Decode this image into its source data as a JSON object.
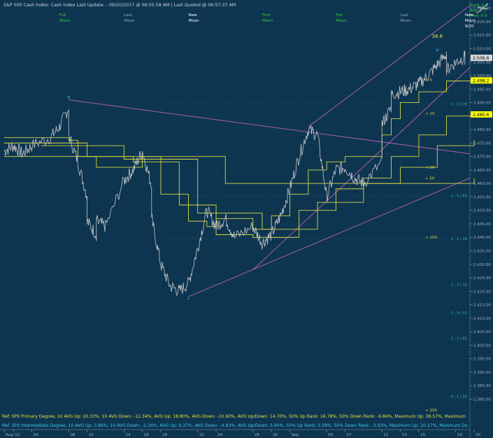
{
  "header": {
    "title": "S&P 500 Cash Index:  Cash Index  Last Update: - 09/20/2017 @ 06:55:58 AM | Last Quoted @ 06:57:37 AM",
    "stats": [
      "Sprd: 2.4",
      "Avg: 2.1",
      "Prev: 0.9"
    ]
  },
  "moon_markers": [
    {
      "line1": "Full",
      "line2": "Moon",
      "color": "#35d035",
      "x": "2017-08-07"
    },
    {
      "line1": "Last",
      "line2": "Moon",
      "color": "#9aa8b0",
      "x": "2017-08-14"
    },
    {
      "line1": "New",
      "line2": "Moon",
      "color": "#ffffff",
      "x": "2017-08-21"
    },
    {
      "line1": "First",
      "line2": "Moon",
      "color": "#35d035",
      "x": "2017-08-29"
    },
    {
      "line1": "Full",
      "line2": "Moon",
      "color": "#35d035",
      "x": "2017-09-06"
    },
    {
      "line1": "Last",
      "line2": "Moon",
      "color": "#9aa8b0",
      "x": "2017-09-13"
    },
    {
      "line1": "New",
      "line2": "Moon",
      "color": "#ffffff",
      "x": "2017-09-20",
      "line3": "9/20"
    }
  ],
  "footer": {
    "primary": "Ref: SPX Primary Degree, 10 AVG Up: 20.33%, 10 AVG Down: -11.34%, AVG Up: 18.80%, AVG Down: -10.60%, AVG Up/Down: 14.70%, 50%  Up Rank: 16.78%, 50% Down Rank: -9.84%, Maximum Up: 38.57%, Maximum",
    "intermediate": "Ref: SPX Intermediate Degree, 10 AVG Up: 3.86%, 10 AVG Down: -2.34%, AVG Up: 6.37%, AVG Down: -4.83%, AVG Up/Down: 5.60%, 50%  Up Rank: 5.58%, 50% Down Rank: -3.93%, Maximum Up: 20.27%, Maximum Do"
  },
  "chart_data": {
    "type": "line",
    "y_range": [
      2377,
      2527
    ],
    "x_range": [
      "2017-08-01",
      "2017-09-21"
    ],
    "y_ticks": [
      2380,
      2385,
      2390,
      2395,
      2400,
      2405,
      2410,
      2415,
      2420,
      2425,
      2430,
      2435,
      2440,
      2445,
      2450,
      2455,
      2460,
      2465,
      2470,
      2475,
      2480,
      2485,
      2490,
      2495,
      2500,
      2505,
      2510,
      2515,
      2520,
      2525
    ],
    "y_tick_labels": [
      "2,380.00",
      "2,385.00",
      "2,390.00",
      "2,395.00",
      "2,400.00",
      "2,405.00",
      "2,410.00",
      "2,415.00",
      "2,420.00",
      "2,425.00",
      "2,430.00",
      "2,435.00",
      "2,440.00",
      "2,445.00",
      "2,450.00",
      "2,455.00",
      "2,460.00",
      "2,465.00",
      "2,470.00",
      "2,475.00",
      "2,480.00",
      "2,485.00",
      "2,490.00",
      "2,495.00",
      "2,500.00",
      "2,505.00",
      "2,510.00",
      "2,515.00",
      "2,520.00",
      "2,525.00"
    ],
    "x_ticks": [
      {
        "x": "2017-08-01",
        "label": "Aug"
      },
      {
        "x": "2017-08-02",
        "label": "02"
      },
      {
        "x": "2017-08-04",
        "label": "04"
      },
      {
        "x": "2017-08-08",
        "label": "08"
      },
      {
        "x": "2017-08-10",
        "label": "10"
      },
      {
        "x": "2017-08-14",
        "label": "14"
      },
      {
        "x": "2017-08-16",
        "label": "16"
      },
      {
        "x": "2017-08-18",
        "label": "18"
      },
      {
        "x": "2017-08-22",
        "label": "22"
      },
      {
        "x": "2017-08-24",
        "label": "24"
      },
      {
        "x": "2017-08-28",
        "label": "28"
      },
      {
        "x": "2017-08-30",
        "label": "30"
      },
      {
        "x": "2017-09-01",
        "label": "Sep"
      },
      {
        "x": "2017-09-05",
        "label": "05"
      },
      {
        "x": "2017-09-07",
        "label": "07"
      },
      {
        "x": "2017-09-11",
        "label": "11"
      },
      {
        "x": "2017-09-13",
        "label": "13"
      },
      {
        "x": "2017-09-15",
        "label": "15"
      },
      {
        "x": "2017-09-19",
        "label": "19"
      },
      {
        "x": "2017-09-21",
        "label": "20"
      }
    ],
    "price": {
      "name": "S&P 500 Cash Index",
      "color": "#c8c8c8",
      "points": [
        [
          "2017-08-01",
          2472
        ],
        [
          "2017-08-02",
          2474
        ],
        [
          "2017-08-03",
          2471
        ],
        [
          "2017-08-04",
          2474
        ],
        [
          "2017-08-06",
          2477
        ],
        [
          "2017-08-07",
          2481
        ],
        [
          "2017-08-08",
          2488
        ],
        [
          "2017-08-08",
          2478
        ],
        [
          "2017-08-09",
          2468
        ],
        [
          "2017-08-10",
          2455
        ],
        [
          "2017-08-10",
          2446
        ],
        [
          "2017-08-11",
          2441
        ],
        [
          "2017-08-11",
          2446
        ],
        [
          "2017-08-12",
          2444
        ],
        [
          "2017-08-14",
          2461
        ],
        [
          "2017-08-15",
          2465
        ],
        [
          "2017-08-16",
          2472
        ],
        [
          "2017-08-17",
          2459
        ],
        [
          "2017-08-17",
          2447
        ],
        [
          "2017-08-18",
          2430
        ],
        [
          "2017-08-19",
          2422
        ],
        [
          "2017-08-20",
          2420
        ],
        [
          "2017-08-21",
          2423
        ],
        [
          "2017-08-22",
          2436
        ],
        [
          "2017-08-23",
          2450
        ],
        [
          "2017-08-24",
          2444
        ],
        [
          "2017-08-25",
          2447
        ],
        [
          "2017-08-26",
          2440
        ],
        [
          "2017-08-28",
          2444
        ],
        [
          "2017-08-29",
          2438
        ],
        [
          "2017-08-30",
          2441
        ],
        [
          "2017-08-31",
          2448
        ],
        [
          "2017-09-01",
          2458
        ],
        [
          "2017-09-02",
          2470
        ],
        [
          "2017-09-03",
          2480
        ],
        [
          "2017-09-04",
          2478
        ],
        [
          "2017-09-05",
          2455
        ],
        [
          "2017-09-06",
          2465
        ],
        [
          "2017-09-07",
          2466
        ],
        [
          "2017-09-08",
          2462
        ],
        [
          "2017-09-09",
          2460
        ],
        [
          "2017-09-11",
          2468
        ],
        [
          "2017-09-11",
          2482
        ],
        [
          "2017-09-12",
          2488
        ],
        [
          "2017-09-12",
          2493
        ],
        [
          "2017-09-13",
          2494
        ],
        [
          "2017-09-14",
          2495
        ],
        [
          "2017-09-15",
          2497
        ],
        [
          "2017-09-16",
          2500
        ],
        [
          "2017-09-17",
          2504
        ],
        [
          "2017-09-18",
          2508
        ],
        [
          "2017-09-18",
          2502
        ],
        [
          "2017-09-19",
          2505
        ],
        [
          "2017-09-20",
          2507
        ],
        [
          "2017-09-20",
          2506
        ]
      ]
    },
    "last_value": {
      "label": "2,506.6",
      "y": 2506.6
    },
    "level_labels": [
      {
        "label": "2,498.2",
        "y": 2498.2
      },
      {
        "label": "2,485.6",
        "y": 2485.6
      }
    ],
    "trendlines": [
      {
        "name": "upper-channel",
        "color": "#c060c0",
        "from": [
          "2017-09-03",
          2481
        ],
        "to": [
          "2017-09-21",
          2526
        ]
      },
      {
        "name": "lower-channel",
        "color": "#c060c0",
        "from": [
          "2017-08-28",
          2428
        ],
        "to": [
          "2017-09-21",
          2503
        ]
      },
      {
        "name": "long-support",
        "color": "#c060c0",
        "from": [
          "2017-08-21",
          2418
        ],
        "to": [
          "2017-09-21",
          2462
        ]
      },
      {
        "name": "descending-resistance",
        "color": "#c060c0",
        "from": [
          "2017-08-08",
          2491
        ],
        "to": [
          "2017-09-21",
          2471
        ]
      }
    ],
    "step_series": [
      {
        "name": "< 5",
        "color": "#d8d840",
        "label_y": 2498.5,
        "points": [
          [
            "2017-08-01",
            2477
          ],
          [
            "2017-08-08",
            2476
          ],
          [
            "2017-08-09",
            2470
          ],
          [
            "2017-08-11",
            2466
          ],
          [
            "2017-08-14",
            2466
          ],
          [
            "2017-08-16",
            2470
          ],
          [
            "2017-08-18",
            2456
          ],
          [
            "2017-08-21",
            2446
          ],
          [
            "2017-08-23",
            2444
          ],
          [
            "2017-08-24",
            2447
          ],
          [
            "2017-08-28",
            2443
          ],
          [
            "2017-08-30",
            2448
          ],
          [
            "2017-09-01",
            2456
          ],
          [
            "2017-09-03",
            2465
          ],
          [
            "2017-09-05",
            2468
          ],
          [
            "2017-09-07",
            2470
          ],
          [
            "2017-09-11",
            2478
          ],
          [
            "2017-09-12",
            2484
          ],
          [
            "2017-09-13",
            2490
          ],
          [
            "2017-09-15",
            2494
          ],
          [
            "2017-09-18",
            2498
          ],
          [
            "2017-09-21",
            2498
          ]
        ]
      },
      {
        "name": "< 10",
        "color": "#d8d840",
        "label_y": 2486,
        "points": [
          [
            "2017-08-01",
            2475
          ],
          [
            "2017-08-10",
            2470
          ],
          [
            "2017-08-15",
            2468
          ],
          [
            "2017-08-20",
            2452
          ],
          [
            "2017-08-24",
            2441
          ],
          [
            "2017-08-28",
            2440
          ],
          [
            "2017-09-02",
            2450
          ],
          [
            "2017-09-06",
            2458
          ],
          [
            "2017-09-09",
            2462
          ],
          [
            "2017-09-12",
            2470
          ],
          [
            "2017-09-15",
            2478
          ],
          [
            "2017-09-18",
            2485
          ],
          [
            "2017-09-21",
            2485
          ]
        ]
      },
      {
        "name": "< 20",
        "color": "#d8d840",
        "label_y": 2466,
        "points": [
          [
            "2017-08-05",
            2474
          ],
          [
            "2017-08-14",
            2469
          ],
          [
            "2017-08-22",
            2449
          ],
          [
            "2017-08-29",
            2443
          ],
          [
            "2017-09-04",
            2453
          ],
          [
            "2017-09-09",
            2460
          ],
          [
            "2017-09-13",
            2466
          ],
          [
            "2017-09-17",
            2474
          ],
          [
            "2017-09-21",
            2476
          ]
        ]
      },
      {
        "name": "< 50",
        "color": "#d8d840",
        "label_y": 2462,
        "points": [
          [
            "2017-08-01",
            2470
          ],
          [
            "2017-08-25",
            2460
          ],
          [
            "2017-09-21",
            2462
          ]
        ]
      },
      {
        "name": "< 100",
        "color": "#d8d840",
        "label_y": 2440,
        "points": []
      },
      {
        "name": "< 200",
        "color": "#d8d840",
        "label_y": 2376,
        "points": []
      }
    ],
    "reference_levels": [
      {
        "label": "1 : 0 | 28",
        "y": 2489.5
      },
      {
        "label": "2 - 1 | 60",
        "y": 2455.5
      },
      {
        "label": "1 - 1 | 24",
        "y": 2439.5
      },
      {
        "label": "1 - 3 | 32",
        "y": 2422.5
      },
      {
        "label": "2 - 3 | 55",
        "y": 2412
      },
      {
        "label": "3 - 1 | 65",
        "y": 2402.5
      },
      {
        "label": "4 - 1 | 58",
        "y": 2381
      }
    ],
    "annotations": [
      {
        "label": "38.6",
        "x": "2017-09-17",
        "y": 2514,
        "color": "#e8e040"
      },
      {
        "label": "H",
        "x": "2017-08-08",
        "y": 2491.5,
        "color": "#60c8e0"
      },
      {
        "label": "H",
        "x": "2017-09-17",
        "y": 2509,
        "color": "#60c8e0"
      },
      {
        "label": "L",
        "x": "2017-08-21",
        "y": 2417,
        "color": "#60c8e0"
      }
    ]
  }
}
